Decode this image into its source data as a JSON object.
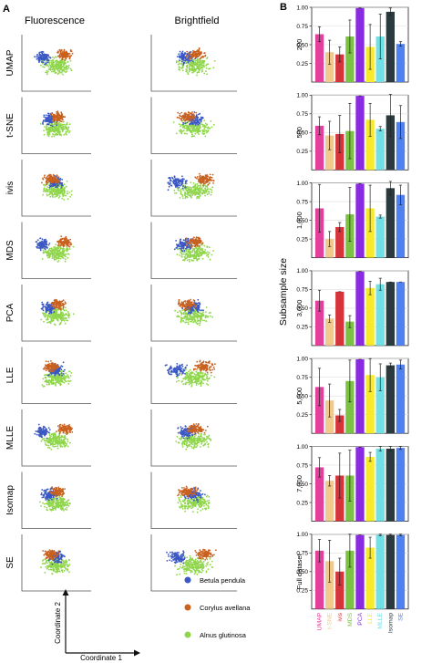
{
  "panel_a": {
    "label": "A",
    "columns": [
      "Fluorescence",
      "Brightfield"
    ],
    "rows": [
      "UMAP",
      "t-SNE",
      "ivis",
      "MDS",
      "PCA",
      "LLE",
      "MLLE",
      "Isomap",
      "SE"
    ],
    "axis_y": "Coordinate 2",
    "axis_x": "Coordinate 1",
    "legend": [
      {
        "name": "Betula pendula",
        "color": "#3a57c4"
      },
      {
        "name": "Corylus avellana",
        "color": "#c9611f"
      },
      {
        "name": "Alnus glutinosa",
        "color": "#8fd64a"
      }
    ]
  },
  "panel_b": {
    "label": "B",
    "ylabel": "Subsample size"
  },
  "chart_data": {
    "type": "bar",
    "title": "",
    "categories": [
      "UMAP",
      "t-SNE",
      "ivis",
      "MDS",
      "PCA",
      "LLE",
      "MLLE",
      "Isomap",
      "SE"
    ],
    "category_colors": [
      "#e2409a",
      "#f2c98c",
      "#d6343a",
      "#7cc242",
      "#8a2be2",
      "#f7ea2a",
      "#6ee0e6",
      "#2b3a3e",
      "#4f82ee"
    ],
    "ylim": [
      0,
      1
    ],
    "yticks": [
      "0.25",
      "0.50",
      "0.75",
      "1.00"
    ],
    "series": [
      {
        "name": "200",
        "values": [
          0.64,
          0.4,
          0.37,
          0.61,
          0.99,
          0.47,
          0.61,
          0.94,
          0.51
        ],
        "errors": [
          0.1,
          0.16,
          0.1,
          0.22,
          0.0,
          0.3,
          0.3,
          0.05,
          0.03
        ]
      },
      {
        "name": "500",
        "values": [
          0.59,
          0.46,
          0.48,
          0.52,
          0.99,
          0.67,
          0.55,
          0.73,
          0.64
        ],
        "errors": [
          0.12,
          0.19,
          0.25,
          0.37,
          0.0,
          0.22,
          0.03,
          0.28,
          0.22
        ]
      },
      {
        "name": "1,000",
        "values": [
          0.66,
          0.25,
          0.41,
          0.58,
          0.99,
          0.66,
          0.55,
          0.93,
          0.84
        ],
        "errors": [
          0.32,
          0.1,
          0.06,
          0.36,
          0.0,
          0.31,
          0.02,
          0.09,
          0.13
        ]
      },
      {
        "name": "3,000",
        "values": [
          0.6,
          0.36,
          0.72,
          0.32,
          0.99,
          0.77,
          0.82,
          0.85,
          0.85
        ],
        "errors": [
          0.14,
          0.05,
          0.0,
          0.08,
          0.0,
          0.09,
          0.08,
          0.0,
          0.0
        ]
      },
      {
        "name": "5,000",
        "values": [
          0.62,
          0.44,
          0.24,
          0.7,
          0.99,
          0.78,
          0.75,
          0.91,
          0.92
        ],
        "errors": [
          0.25,
          0.22,
          0.08,
          0.28,
          0.0,
          0.22,
          0.18,
          0.03,
          0.06
        ]
      },
      {
        "name": "7,000",
        "values": [
          0.72,
          0.54,
          0.61,
          0.61,
          0.99,
          0.86,
          0.97,
          0.97,
          0.98
        ],
        "errors": [
          0.13,
          0.07,
          0.3,
          0.34,
          0.0,
          0.06,
          0.03,
          0.03,
          0.02
        ]
      },
      {
        "name": "Full dataset",
        "values": [
          0.78,
          0.64,
          0.5,
          0.78,
          0.99,
          0.82,
          0.99,
          0.99,
          0.99
        ],
        "errors": [
          0.15,
          0.28,
          0.18,
          0.22,
          0.0,
          0.14,
          0.01,
          0.01,
          0.01
        ]
      }
    ]
  }
}
